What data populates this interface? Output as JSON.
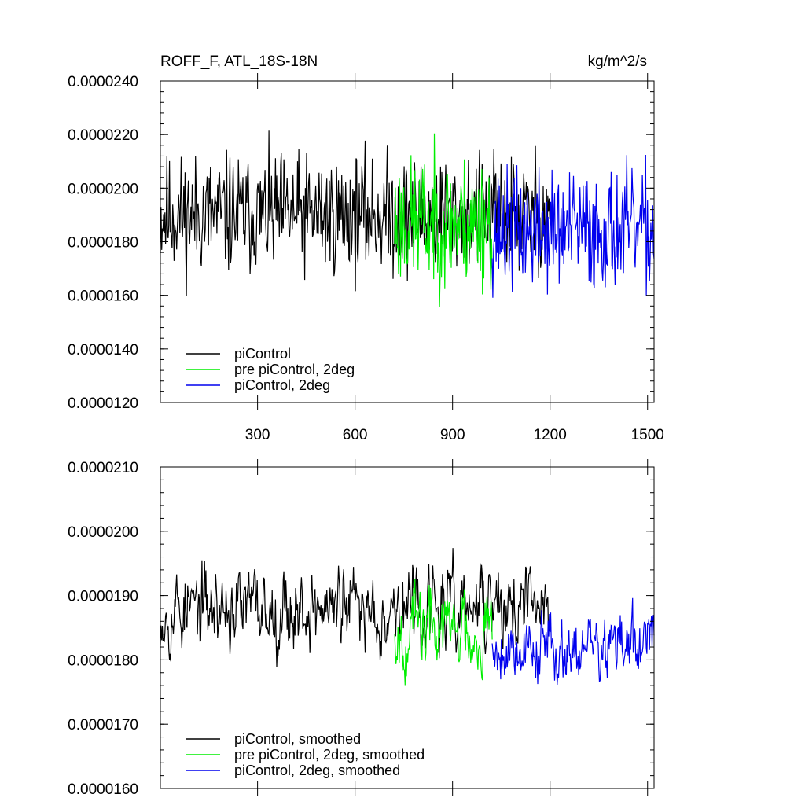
{
  "chart_data": [
    {
      "type": "line",
      "title_left": "ROFF_F, ATL_18S-18N",
      "title_right": "kg/m^2/s",
      "xlim": [
        1,
        1520
      ],
      "ylim": [
        1.2e-05,
        2.4e-05
      ],
      "ytick_values": [
        1.2e-05,
        1.4e-05,
        1.6e-05,
        1.8e-05,
        2e-05,
        2.2e-05,
        2.4e-05
      ],
      "ytick_labels": [
        "0.0000120",
        "0.0000140",
        "0.0000160",
        "0.0000180",
        "0.0000200",
        "0.0000220",
        "0.0000240"
      ],
      "xtick_values": [
        300,
        600,
        900,
        1200,
        1500
      ],
      "xtick_labels": [
        "300",
        "600",
        "900",
        "1200",
        "1500"
      ],
      "xtick_labels_visible": true,
      "legend_position": "bottom-left",
      "series": [
        {
          "name": "piControl",
          "color": "#000000",
          "x_start": 1,
          "x_end": 1200,
          "mean": 1.9e-05,
          "amplitude": 1.1e-06,
          "seed": 11
        },
        {
          "name": "pre piControl, 2deg",
          "color": "#00ee00",
          "x_start": 722,
          "x_end": 1022,
          "mean": 1.87e-05,
          "amplitude": 1.2e-06,
          "seed": 23
        },
        {
          "name": "piControl, 2deg",
          "color": "#0000ee",
          "x_start": 1022,
          "x_end": 1520,
          "mean": 1.84e-05,
          "amplitude": 1.1e-06,
          "seed": 37
        }
      ]
    },
    {
      "type": "line",
      "xlim": [
        1,
        1520
      ],
      "ylim": [
        1.6e-05,
        2.1e-05
      ],
      "ytick_values": [
        1.6e-05,
        1.7e-05,
        1.8e-05,
        1.9e-05,
        2e-05,
        2.1e-05
      ],
      "ytick_labels": [
        "0.0000160",
        "0.0000170",
        "0.0000180",
        "0.0000190",
        "0.0000200",
        "0.0000210"
      ],
      "xtick_values": [
        300,
        600,
        900,
        1200,
        1500
      ],
      "xtick_labels": [],
      "xtick_labels_visible": false,
      "legend_position": "bottom-left",
      "series": [
        {
          "name": "piControl, smoothed",
          "color": "#000000",
          "x_start": 1,
          "x_end": 1200,
          "mean": 1.88e-05,
          "amplitude": 6e-07,
          "seed": 53
        },
        {
          "name": "pre piControl, 2deg, smoothed",
          "color": "#00ee00",
          "x_start": 722,
          "x_end": 1022,
          "mean": 1.85e-05,
          "amplitude": 6e-07,
          "seed": 67
        },
        {
          "name": "piControl, 2deg, smoothed",
          "color": "#0000ee",
          "x_start": 1022,
          "x_end": 1520,
          "mean": 1.82e-05,
          "amplitude": 5e-07,
          "seed": 79
        }
      ]
    }
  ]
}
